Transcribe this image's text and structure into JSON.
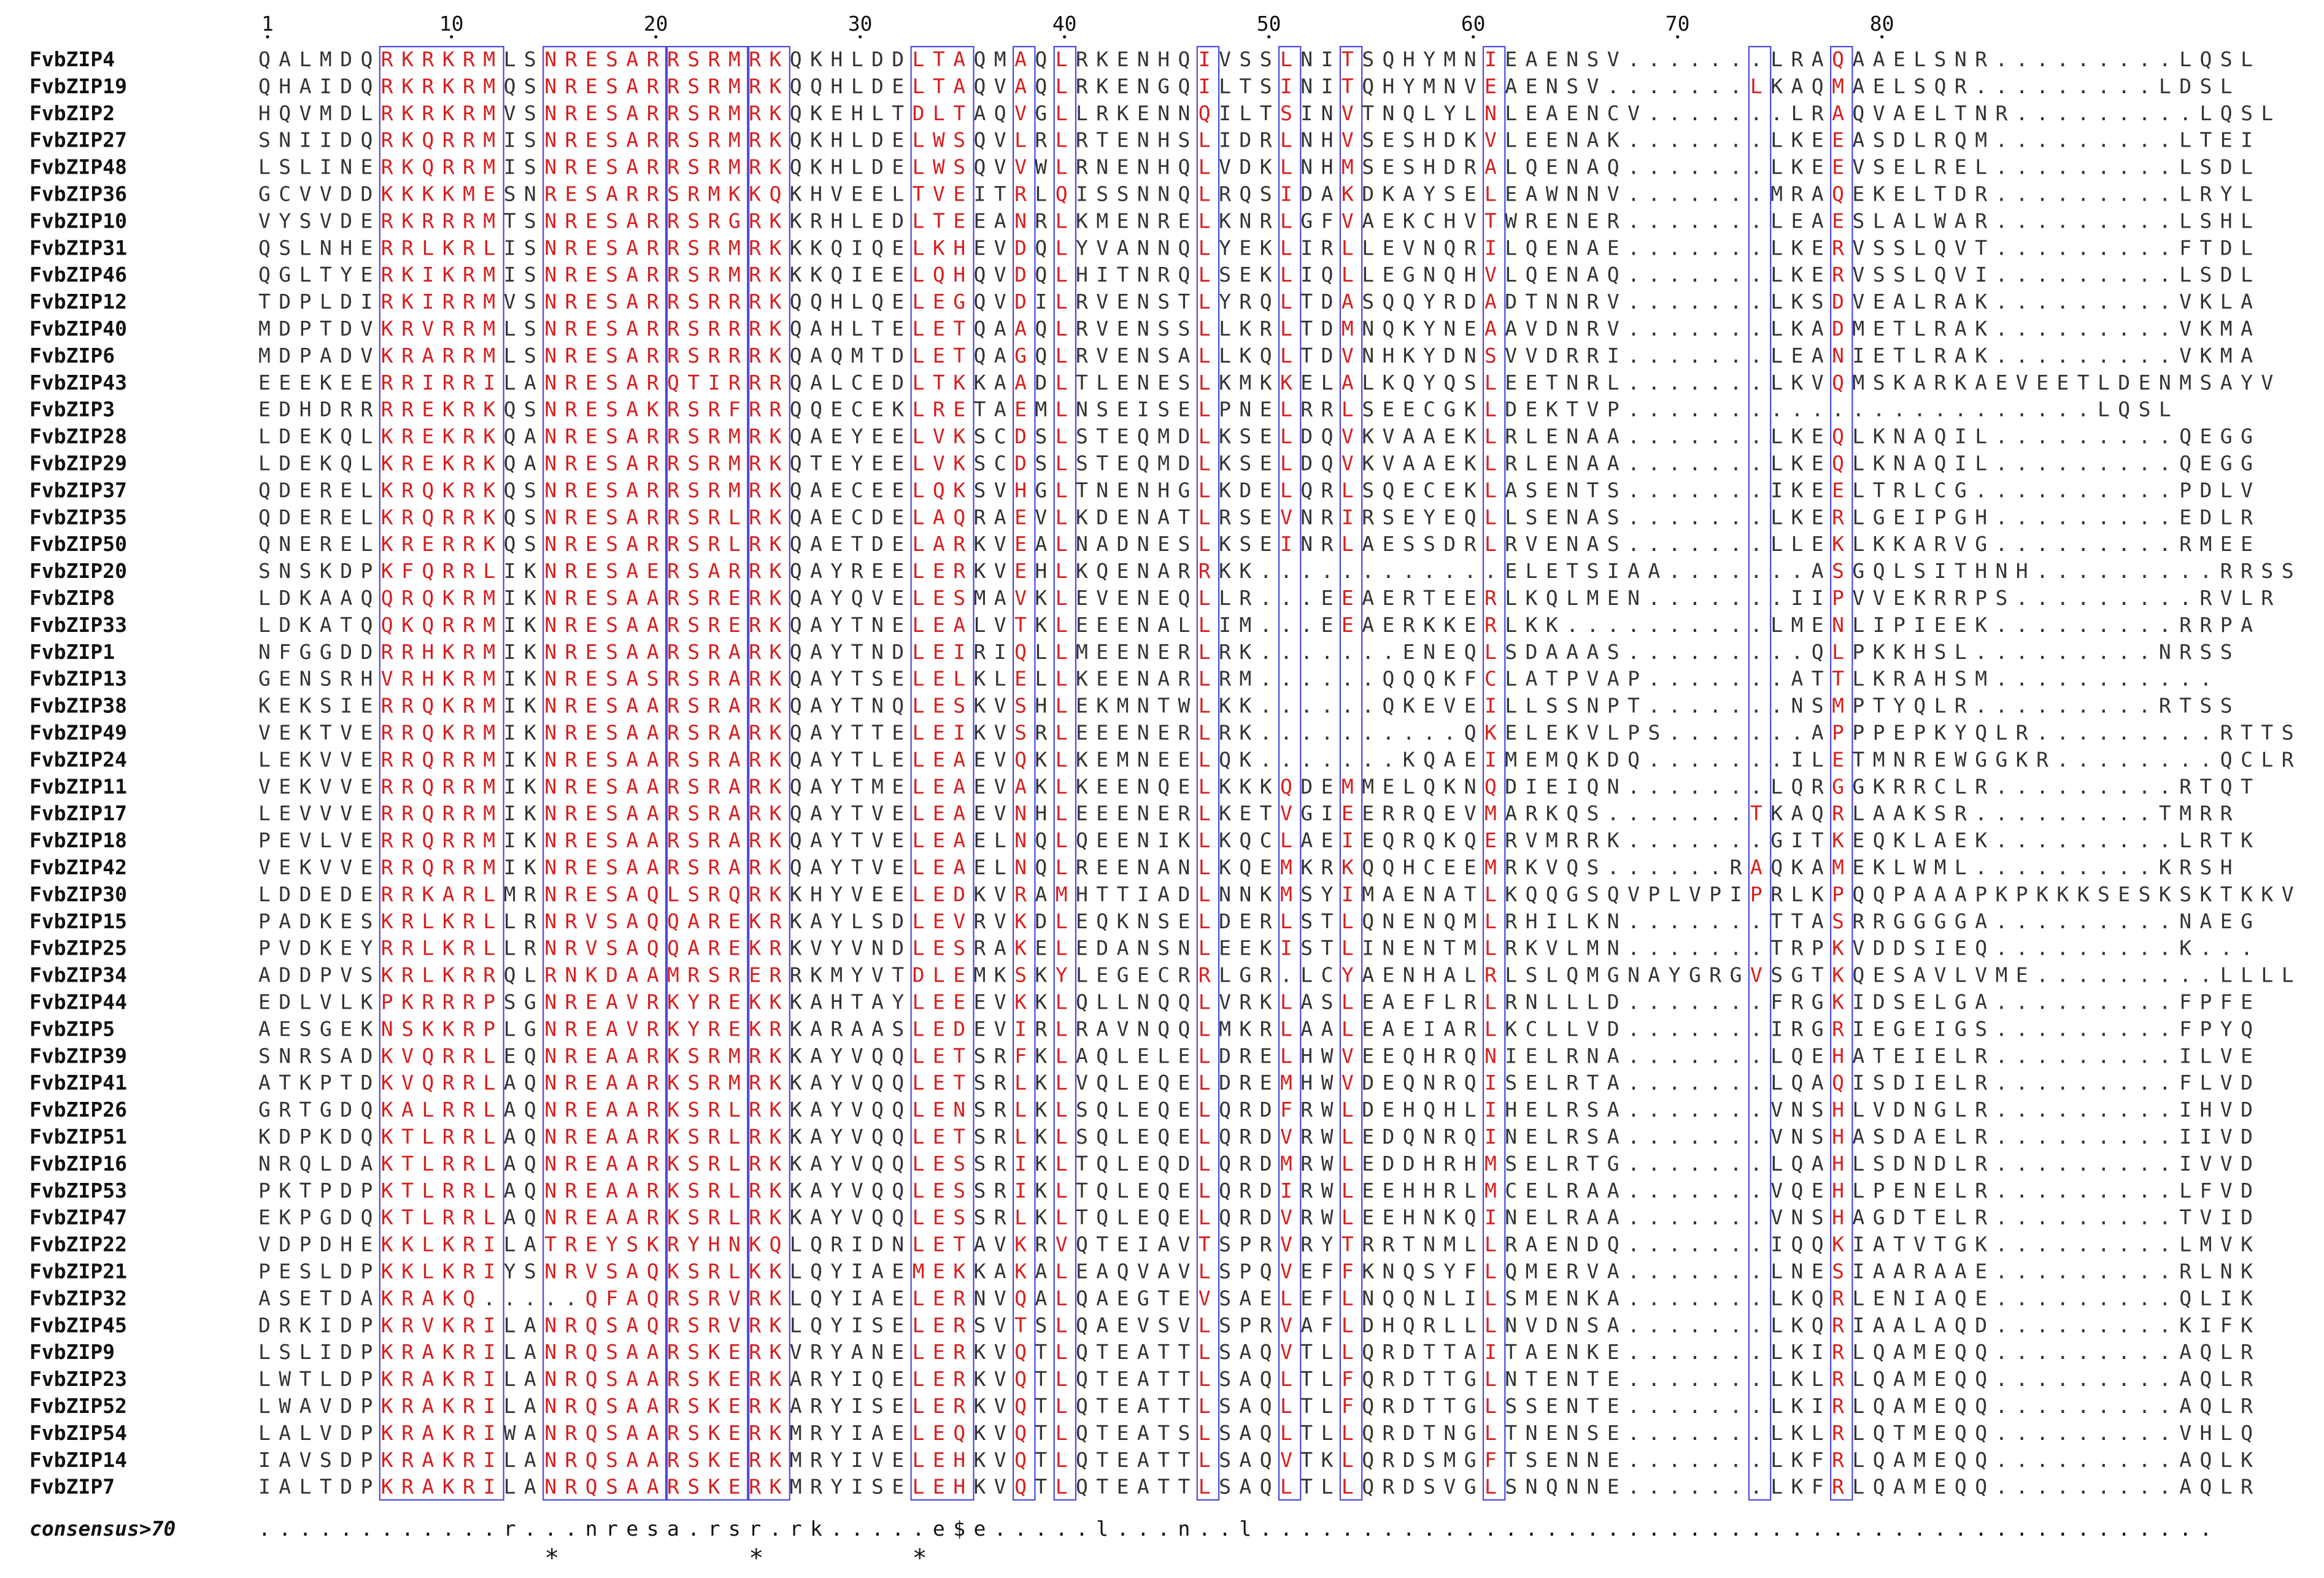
{
  "position_labels": [
    {
      "pos": 1,
      "label": "1"
    },
    {
      "pos": 10,
      "label": "10"
    },
    {
      "pos": 20,
      "label": "20"
    },
    {
      "pos": 30,
      "label": "30"
    },
    {
      "pos": 40,
      "label": "40"
    },
    {
      "pos": 50,
      "label": "50"
    },
    {
      "pos": 60,
      "label": "60"
    },
    {
      "pos": 70,
      "label": "70"
    },
    {
      "pos": 80,
      "label": "80"
    }
  ],
  "colors": {
    "identity": "#d81e1e",
    "default": "#333333",
    "box": "#4a4adf",
    "text": "#111111"
  },
  "boxes": [
    {
      "start": 7,
      "end": 12
    },
    {
      "start": 15,
      "end": 20
    },
    {
      "start": 21,
      "end": 24
    },
    {
      "start": 25,
      "end": 26
    },
    {
      "start": 33,
      "end": 35
    },
    {
      "start": 38,
      "end": 38
    },
    {
      "start": 40,
      "end": 40
    },
    {
      "start": 47,
      "end": 47
    },
    {
      "start": 51,
      "end": 51
    },
    {
      "start": 54,
      "end": 54
    },
    {
      "start": 61,
      "end": 61
    },
    {
      "start": 74,
      "end": 74
    },
    {
      "start": 78,
      "end": 78
    }
  ],
  "identical_columns": [
    8,
    15,
    16,
    17,
    18,
    19,
    20,
    22,
    23,
    24,
    25,
    26,
    33,
    35
  ],
  "sequences": [
    {
      "name": "FvbZIP4",
      "seq": "QALMDQRKRKRMLSNRESARRSRMRKQKHLDDLTAQMAQLRKENHQIVSSLNITSQHYMNIEAENSV.......LRAQAAELSNR.........LQSL"
    },
    {
      "name": "FvbZIP19",
      "seq": "QHAIDQRKRKRMQSNRESARRSRMRKQQHLDELTAQVAQLRKENGQILTSINITQHYMNVEAENSV.......LKAQMAELSQR.........LDSL"
    },
    {
      "name": "FvbZIP2",
      "seq": "HQVMDLRKRKRMVSNRESARRSRMRKQKEHLTDLTAQVGLLRKENNQILTSINVTNQLYLNLEAENCV.......LRAQVAELTNR.........LQSL"
    },
    {
      "name": "FvbZIP27",
      "seq": "SNIIDQRKQRRMISNRESARRSRMRKQKHLDELWSQVLRLRTENHSLIDRLNHVSESHDKVLEENAK.......LKEEASDLRQM.........LTEI"
    },
    {
      "name": "FvbZIP48",
      "seq": "LSLINERKQRRMISNRESARRSRMRKQKHLDELWSQVVWLRNENHQLVDKLNHMSESHDRALQENAQ.......LKEEVSELREL.........LSDL"
    },
    {
      "name": "FvbZIP36",
      "seq": "GCVVDDKKKKMESNRESARRSRMKKQKHVEELTVEITRLQISSNNQLRQSIDAKDKAYSELEAWNNV.......MRAQEKELTDR.........LRYL"
    },
    {
      "name": "FvbZIP10",
      "seq": "VYSVDERKRRRMTSNRESARRSRGRKKRHLEDLTEEANRLKMENRELKNRLGFVAEKCHVTWRENER.......LEAESLALWAR.........LSHL"
    },
    {
      "name": "FvbZIP31",
      "seq": "QSLNHERRLKRLISNRESARRSRMRKKKQIQELKHEVDQLYVANNQLYEKLIRLLEVNQRILQENAE.......LKERVSSLQVT.........FTDL"
    },
    {
      "name": "FvbZIP46",
      "seq": "QGLTYERKIKRMISNRESARRSRMRKKKQIEELQHQVDQLHITNRQLSEKLIQLLEGNQHVLQENAQ.......LKERVSSLQVI.........LSDL"
    },
    {
      "name": "FvbZIP12",
      "seq": "TDPLDIRKIRRMVSNRESARRSRRRKQQHLQELEGQVDILRVENSTLYRQLTDASQQYRDADTNNRV.......LKSDVEALRAK.........VKLA"
    },
    {
      "name": "FvbZIP40",
      "seq": "MDPTDVKRVRRMLSNRESARRSRRRKQAHLTELETQAAQLRVENSSLLKRLTDMNQKYNEAAVDNRV.......LKADMETLRAK.........VKMA"
    },
    {
      "name": "FvbZIP6",
      "seq": "MDPADVKRARRMLSNRESARRSRRRKQAQMTDLETQAGQLRVENSALLKQLTDVNHKYDNSVVDRRI.......LEANIETLRAK.........VKMA"
    },
    {
      "name": "FvbZIP43",
      "seq": "EEEKEERRIRRILANRESARQTIRRRQALCEDLTKKAADLTLENESLKMKKELALKQYQSLEETNRL.......LKVQMSKARKAEVEETLDENMSAYV"
    },
    {
      "name": "FvbZIP3",
      "seq": "EDHDRRRREKRKQSNRESAKRSRFRRQQECEKLRETAEMLNSEISELPNELRRLSEECGKLDEKTVP.......................LQSL"
    },
    {
      "name": "FvbZIP28",
      "seq": "LDEKQLKREKRKQANRESARRSRMRKQAEYEELVKSCDSLSTEQMDLKSELDQVKVAAEKLRLENAA.......LKEQLKNAQIL.........QEGG"
    },
    {
      "name": "FvbZIP29",
      "seq": "LDEKQLKREKRKQANRESARRSRMRKQTEYEELVKSCDSLSTEQMDLKSELDQVKVAAEKLRLENAA.......LKEQLKNAQIL.........QEGG"
    },
    {
      "name": "FvbZIP37",
      "seq": "QDERELKRQKRKQSNRESARRSRMRKQAECEELQKSVHGLTNENHGLKDELQRLSQECEKLASENTS.......IKEELTRLCG..........PDLV"
    },
    {
      "name": "FvbZIP35",
      "seq": "QDERELKRQRRKQSNRESARRSRLRKQAECDELAQRAEVLKDENATLRSEVNRIRSEYEQLLSENAS.......LKERLGEIPGH.........EDLR"
    },
    {
      "name": "FvbZIP50",
      "seq": "QNERELKRERRKQSNRESARRSRLRKQAETDELARKVEALNADNESLKSEINRLAESSDRLRVENAS.......LLEKLKKARVG.........RMEE"
    },
    {
      "name": "FvbZIP20",
      "seq": "SNSKDPKFQRRLIKNRESAERSARRKQAYREELERKVEHLKQENARRKK............ELETSIAA.......ASGQLSITHNH.........RRSS"
    },
    {
      "name": "FvbZIP8",
      "seq": "LDKAAQQRQKRMIKNRESAARSRERKQAYQVELESMAVKLEVENEQLLR...EEAERTEERLKQLMEN.......IIPVVEKRRPS.........RVLR"
    },
    {
      "name": "FvbZIP33",
      "seq": "LDKATQQKQRRMIKNRESAARSRERKQAYTNELEALVTKLEEENALLIM...EEAERKKERLKK..........LMENLIPIEEK.........RRPA"
    },
    {
      "name": "FvbZIP1",
      "seq": "NFGGDDRRHKRMIKNRESAARSRARKQAYTNDLEIRIQLLMEENERLRK.......ENEQLSDAAAS.........QLPKKHSL.........NRSS"
    },
    {
      "name": "FvbZIP13",
      "seq": "GENSRHVRHKRMIKNRESASRSRARKQAYTSELELKLELLKEENARLRM......QQQKFCLATPVAP.......ATTLKRAHSM..........."
    },
    {
      "name": "FvbZIP38",
      "seq": "KEKSIERRQKRMIKNRESAARSRARKQAYTNQLESKVSHLEKMNTWLKK......QKEVEILLSSNPT.......NSMPTYQLR.........RTSS"
    },
    {
      "name": "FvbZIP49",
      "seq": "VEKTVERRQKRMIKNRESAARSRARKQAYTTELEIKVSRLEEENERLRK..........QKELEKVLPS.......APPPEPKYQLR.........RTTS"
    },
    {
      "name": "FvbZIP24",
      "seq": "LEKVVERRQRRMIKNRESAARSRARKQAYTLELEAEVQKLKEMNEELQK.......KQAEIMEMQKDQ.......ILETMNREWGGKR........QCLR"
    },
    {
      "name": "FvbZIP11",
      "seq": "VEKVVERRQRRMIKNRESAARSRARKQAYTMELEAEVAKLKEENQELKKKQDEMMELQKNQDIEIQN.......LQRGGKRRCLR.........RTQT"
    },
    {
      "name": "FvbZIP17",
      "seq": "LEVVVERRQRRMIKNRESAARSRARKQAYTVELEAEVNHLEEENERLKETVGIEERRQEVMARKQS.......TKAQRLAAKSR.........TMRR"
    },
    {
      "name": "FvbZIP18",
      "seq": "PEVLVERRQRRMIKNRESAARSRARKQAYTVELEAELNQLQEENIKLKQCLAEIEQRQKQERVMRRK.......GITKEQKLAEK.........LRTK"
    },
    {
      "name": "FvbZIP42",
      "seq": "VEKVVERRQRRMIKNRESAARSRARKQAYTVELEAELNQLREENANLKQEMKRKQQHCEEMRKVQS......RAQKAMEKLWML.........KRSH"
    },
    {
      "name": "FvbZIP30",
      "seq": "LDDEDERRKARLMRNRESAQLSRQRKKHYVEELEDKVRAMHTTIADLNNKMSYIMAENATLKQQGSQVPLVPIPRLKPQQPAAAPKPKKKSESKSKTKKV"
    },
    {
      "name": "FvbZIP15",
      "seq": "PADKESKRLKRLLRNRVSAQQAREKRKAYLSDLEVRVKDLEQKNSELDERLSTLQNENQMLRHILKN.......TTASRRGGGGA.........NAEG"
    },
    {
      "name": "FvbZIP25",
      "seq": "PVDKEYRRLKRLLRNRVSAQQAREKRKVYVNDLESRAKELEDANSNLEEKISTLINENTMLRKVLMN.......TRPKVDDSIEQ.........K..."
    },
    {
      "name": "FvbZIP34",
      "seq": "ADDPVSKRLKRRQLRNKDAAMRSRERRKMYVTDLEMKSKYLEGECRRLGR.LCYAENHALRLSLQMGNAYGRGVSGTKQESAVLVME.........LLLL"
    },
    {
      "name": "FvbZIP44",
      "seq": "EDLVLKPKRRRPSGNREAVRKYREKKKAHTAYLEEEVKKLQLLNQQLVRKLASLEAEFLRLRNLLLD.......FRGKIDSELGA.........FPFE"
    },
    {
      "name": "FvbZIP5",
      "seq": "AESGEKNSKKRPLGNREAVRKYREKRKARAASLEDEVIRLRAVNQQLMKRLAALEAEIARLKCLLVD.......IRGRIEGEIGS.........FPYQ"
    },
    {
      "name": "FvbZIP39",
      "seq": "SNRSADKVQRRLEQNREAARKSRMRKKAYVQQLETSRFKLAQLELELDRELHWVEEQHRQNIELRNA.......LQEHATEIELR.........ILVE"
    },
    {
      "name": "FvbZIP41",
      "seq": "ATKPTDKVQRRLAQNREAARKSRMRKKAYVQQLETSRLKLVQLEQELDREMHWVDEQNRQISELRTA.......LQAQISDIELR.........FLVD"
    },
    {
      "name": "FvbZIP26",
      "seq": "GRTGDQKALRRLAQNREAARKSRLRKKAYVQQLENSRLKLSQLEQELQRDFRWLDEHQHLIHELRSA.......VNSHLVDNGLR.........IHVD"
    },
    {
      "name": "FvbZIP51",
      "seq": "KDPKDQKTLRRLAQNREAARKSRLRKKAYVQQLETSRLKLSQLEQELQRDVRWLEDQNRQINELRSA.......VNSHASDAELR.........IIVD"
    },
    {
      "name": "FvbZIP16",
      "seq": "NRQLDAKTLRRLAQNREAARKSRLRKKAYVQQLESSRIKLTQLEQDLQRDMRWLEDDHRHMSELRTG.......LQAHLSDNDLR.........IVVD"
    },
    {
      "name": "FvbZIP53",
      "seq": "PKTPDPKTLRRLAQNREAARKSRLRKKAYVQQLESSRIKLTQLEQELQRDIRWLEEHHRLMCELRAA.......VQEHLPENELR.........LFVD"
    },
    {
      "name": "FvbZIP47",
      "seq": "EKPGDQKTLRRLAQNREAARKSRLRKKAYVQQLESSRLKLTQLEQELQRDVRWLEEHNKQINELRAA.......VNSHAGDTELR.........TVID"
    },
    {
      "name": "FvbZIP22",
      "seq": "VDPDHEKKLKRILATREYSKRYHNKQLQRIDNLETAVKRVQTEIAVTSPRVRYTRRTNMLLRAENDQ.......IQQKIATVTGK.........LMVK"
    },
    {
      "name": "FvbZIP21",
      "seq": "PESLDPKKLKRIYSNRVSAQKSRLKKLQYIAEMEKKAKALEAQVAVLSPQVEFFKNQSYFLQMERVA.......LNESIAARAAE.........RLNK"
    },
    {
      "name": "FvbZIP32",
      "seq": "ASETDAKRAKQ.....QFAQRSRVRKLQYIAELERNVQALQAEGTEVSAELEFLNQQNLILSMENKA.......LKQRLENIAQE.........QLIK"
    },
    {
      "name": "FvbZIP45",
      "seq": "DRKIDPKRVKRILANRQSAQRSRVRKLQYISELERSVTSLQAEVSVLSPRVAFLDHQRLLLNVDNSA.......LKQRIAALAQD.........KIFK"
    },
    {
      "name": "FvbZIP9",
      "seq": "LSLIDPKRAKRILANRQSAARSKERKVRYANELERKVQTLQTEATTLSAQVTLLQRDTTAITAENKE.......LKIRLQAMEQQ.........AQLR"
    },
    {
      "name": "FvbZIP23",
      "seq": "LWTLDPKRAKRILANRQSAARSKERKARYIQELERKVQTLQTEATTLSAQLTLFQRDTTGLNTENTE.......LKLRLQAMEQQ.........AQLR"
    },
    {
      "name": "FvbZIP52",
      "seq": "LWAVDPKRAKRILANRQSAARSKERKARYISELERKVQTLQTEATTLSAQLTLFQRDTTGLSSENTE.......LKIRLQAMEQQ.........AQLR"
    },
    {
      "name": "FvbZIP54",
      "seq": "LALVDPKRAKRIWANRQSAARSKERKMRYIAELEQKVQTLQTEATSLSAQLTLLQRDTNGLTNENSE.......LKLRLQTMEQQ.........VHLQ"
    },
    {
      "name": "FvbZIP14",
      "seq": "IAVSDPKRAKRILANRQSAARSKERKMRYIVELEHKVQTLQTEATTLSAQVTKLQRDSMGFTSENNE.......LKFRLQAMEQQ.........AQLK"
    },
    {
      "name": "FvbZIP7",
      "seq": "IALTDPKRAKRILANRQSAARSKERKMRYISELEHKVQTLQTEATTLSAQLTLLQRDSVGLSNQNNE.......LKFRLQAMEQQ.........AQLR"
    }
  ],
  "consensus": {
    "label": "consensus>70",
    "seq": "............r...nresa.rsr.rk.....e$e.....l...n..l..............................................."
  },
  "stars": [
    {
      "pos": 15,
      "label": "*"
    },
    {
      "pos": 25,
      "label": "*"
    },
    {
      "pos": 33,
      "label": "*"
    }
  ]
}
